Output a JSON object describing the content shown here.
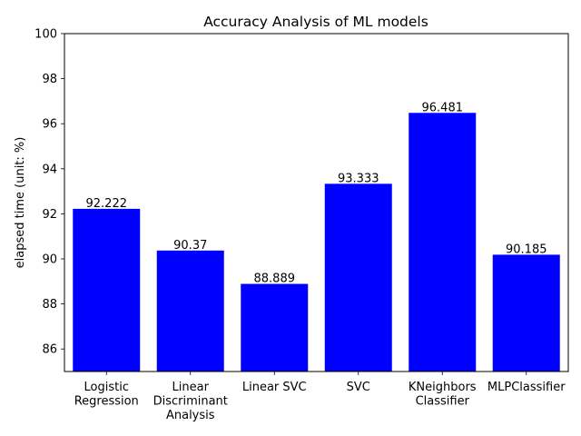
{
  "chart_data": {
    "type": "bar",
    "title": "Accuracy Analysis of ML models",
    "xlabel": "",
    "ylabel": "elapsed time (unit: %)",
    "categories": [
      [
        "Logistic",
        "Regression"
      ],
      [
        "Linear",
        "Discriminant",
        "Analysis"
      ],
      [
        "Linear SVC"
      ],
      [
        "SVC"
      ],
      [
        "KNeighbors",
        "Classifier"
      ],
      [
        "MLPClassifier"
      ]
    ],
    "values": [
      92.222,
      90.37,
      88.889,
      93.333,
      96.481,
      90.185
    ],
    "data_labels": [
      "92.222",
      "90.37",
      "88.889",
      "93.333",
      "96.481",
      "90.185"
    ],
    "ylim": [
      85,
      100
    ],
    "yticks": [
      86,
      88,
      90,
      92,
      94,
      96,
      98,
      100
    ],
    "grid": false,
    "bar_color": "#0000ff"
  }
}
